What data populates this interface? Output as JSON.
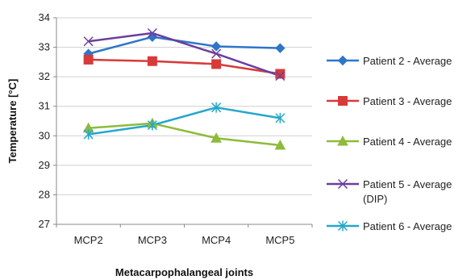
{
  "chart_data": {
    "type": "line",
    "title": "",
    "xlabel": "Metacarpophalangeal joints",
    "ylabel": "Temperature [°C]",
    "categories": [
      "MCP2",
      "MCP3",
      "MCP4",
      "MCP5"
    ],
    "ylim": [
      27,
      34
    ],
    "yticks": [
      "27",
      "28",
      "29",
      "30",
      "31",
      "32",
      "33",
      "34"
    ],
    "grid": true,
    "legend_position": "right",
    "series": [
      {
        "name": "Patient 2 - Average",
        "values": [
          32.78,
          33.35,
          33.03,
          32.97
        ],
        "color": "#2E75C9",
        "marker": "diamond"
      },
      {
        "name": "Patient 3 - Average",
        "values": [
          32.58,
          32.53,
          32.43,
          32.1
        ],
        "color": "#D83A3A",
        "marker": "square"
      },
      {
        "name": "Patient 4 - Average",
        "values": [
          30.26,
          30.42,
          29.92,
          29.68
        ],
        "color": "#8DBB3A",
        "marker": "triangle"
      },
      {
        "name": "Patient 5 - Average (DIP)",
        "legend_lines": [
          "Patient 5 - Average",
          "(DIP)"
        ],
        "values": [
          33.2,
          33.48,
          32.78,
          32.03
        ],
        "color": "#6A3F9E",
        "marker": "x"
      },
      {
        "name": "Patient 6 - Average",
        "values": [
          30.05,
          30.36,
          30.96,
          30.6
        ],
        "color": "#25A7C9",
        "marker": "star"
      }
    ]
  }
}
